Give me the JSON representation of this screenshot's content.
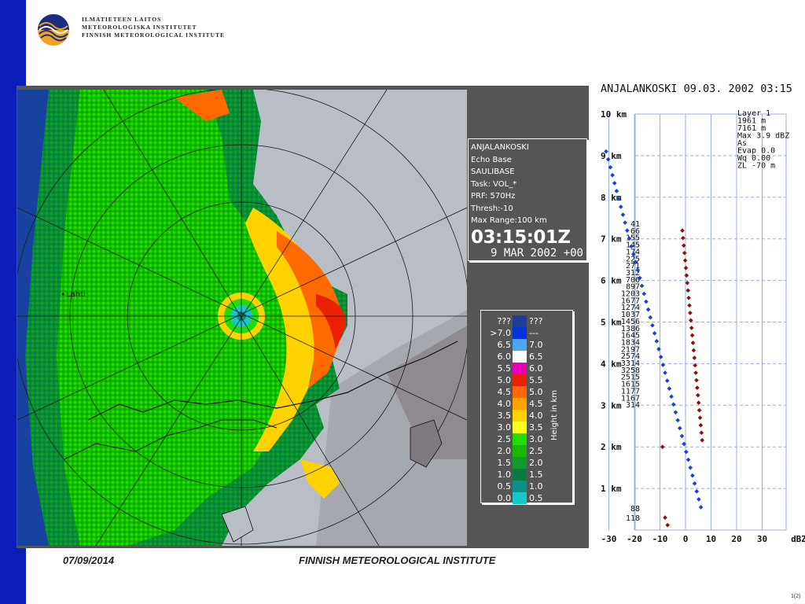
{
  "header": {
    "org_lines": [
      "ILMATIETEEN LAITOS",
      "METEOROLOGISKA INSTITUTET",
      "FINNISH METEOROLOGICAL INSTITUTE"
    ]
  },
  "radar": {
    "city_label": "Lahti",
    "info": {
      "station": "ANJALANKOSKI",
      "product": "Echo Base",
      "base": "SAULIBASE",
      "task": "Task: VOL_*",
      "prf": "PRF: 570Hz",
      "thresh": "Thresh:-10",
      "max_range": "Max Range:100 km",
      "time": "03:15:01Z",
      "date": "9 MAR 2002 +00"
    },
    "legend": {
      "axis_label": "Height in km",
      "rows": [
        {
          "left": "???",
          "right": "???",
          "color": "#1e3c9a"
        },
        {
          "left": ">7.0",
          "right": "---",
          "color": "#0033d8"
        },
        {
          "left": "6.5",
          "right": "7.0",
          "color": "#4aa8f0"
        },
        {
          "left": "6.0",
          "right": "6.5",
          "color": "#ffffff"
        },
        {
          "left": "5.5",
          "right": "6.0",
          "color": "#e600b4"
        },
        {
          "left": "5.0",
          "right": "5.5",
          "color": "#e82200"
        },
        {
          "left": "4.5",
          "right": "5.0",
          "color": "#ff6a00"
        },
        {
          "left": "4.0",
          "right": "4.5",
          "color": "#ffa200"
        },
        {
          "left": "3.5",
          "right": "4.0",
          "color": "#ffd200"
        },
        {
          "left": "3.0",
          "right": "3.5",
          "color": "#ffff22"
        },
        {
          "left": "2.5",
          "right": "3.0",
          "color": "#22dd00"
        },
        {
          "left": "2.0",
          "right": "2.5",
          "color": "#16b800"
        },
        {
          "left": "1.5",
          "right": "2.0",
          "color": "#0f9a2a"
        },
        {
          "left": "1.0",
          "right": "1.5",
          "color": "#0a7a40"
        },
        {
          "left": "0.5",
          "right": "1.0",
          "color": "#0c8f88"
        },
        {
          "left": "0.0",
          "right": "0.5",
          "color": "#18c8c8"
        }
      ]
    }
  },
  "profile": {
    "title": "ANJALANKOSKI 09.03. 2002 03:15",
    "info_lines": [
      "Layer 1",
      "1961 m",
      "7161 m",
      "Max 3.9 dBZ",
      "As",
      "Evap 0.0",
      "Wq 0.00",
      "ZL -70 m"
    ],
    "y_labels": [
      "10 km",
      "9 km",
      "8 km",
      "7 km",
      "6 km",
      "5 km",
      "4 km",
      "3 km",
      "2 km",
      "1 km"
    ],
    "x_labels": [
      "-30",
      "-20",
      "-10",
      "0",
      "10",
      "20",
      "30",
      "dBZ"
    ],
    "counts": [
      "41",
      "66",
      "155",
      "145",
      "174",
      "225",
      "271",
      "312",
      "706",
      "897",
      "1203",
      "1677",
      "1274",
      "1037",
      "1456",
      "1386",
      "1645",
      "1834",
      "2197",
      "2574",
      "3314",
      "3258",
      "2515",
      "1615",
      "1177",
      "1167",
      "314",
      "88",
      "118"
    ],
    "colors": {
      "blue_series": "#1a3ee0",
      "red_series": "#8b1010",
      "grid": "#9ab0e0"
    }
  },
  "footer": {
    "date": "07/09/2014",
    "org": "FINNISH METEOROLOGICAL INSTITUTE",
    "page": "1(2)"
  }
}
